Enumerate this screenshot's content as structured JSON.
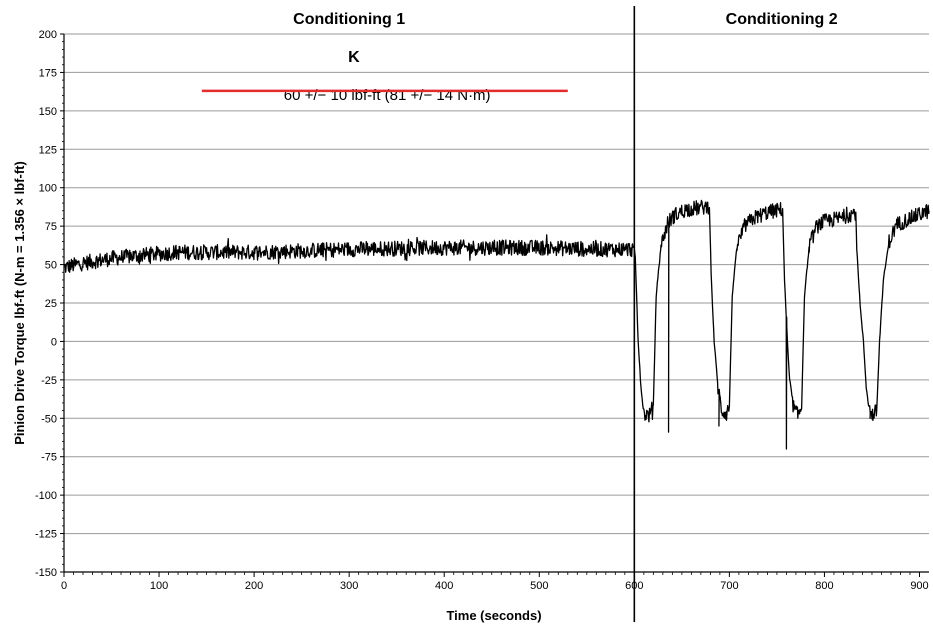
{
  "chart_data": {
    "type": "line",
    "xlabel": "Time (seconds)",
    "ylabel": "Pinion Drive Torque lbf-ft (N-m = 1.356 × lbf-ft)",
    "xlim": [
      0,
      910
    ],
    "ylim": [
      -150,
      200
    ],
    "x_ticks": [
      0,
      100,
      200,
      300,
      400,
      500,
      600,
      700,
      800,
      900
    ],
    "y_ticks": [
      200,
      175,
      150,
      125,
      100,
      75,
      50,
      25,
      0,
      -25,
      -50,
      -75,
      -100,
      -125,
      -150
    ],
    "grid": {
      "horizontal": true,
      "vertical": false
    },
    "phases": [
      {
        "label": "Conditioning 1",
        "x_start": 0,
        "x_end": 600
      },
      {
        "label": "Conditioning 2",
        "x_start": 600,
        "x_end": 910
      }
    ],
    "phase_divider_x": 600,
    "annotations": {
      "marker_label": "K",
      "spec_label": "60 +/− 10 lbf-ft (81 +/− 14 N·m)",
      "spec_line": {
        "y": 163,
        "x_start": 145,
        "x_end": 530,
        "color": "#e32d2d"
      }
    },
    "series": [
      {
        "color": "#000000",
        "noise_amplitude": 5,
        "points": [
          [
            0,
            48
          ],
          [
            20,
            51
          ],
          [
            50,
            54
          ],
          [
            80,
            56
          ],
          [
            120,
            58
          ],
          [
            200,
            58
          ],
          [
            300,
            60
          ],
          [
            400,
            61
          ],
          [
            500,
            61
          ],
          [
            560,
            60
          ],
          [
            598,
            60
          ],
          [
            601,
            55
          ],
          [
            604,
            0
          ],
          [
            607,
            -30
          ],
          [
            610,
            -47
          ],
          [
            616,
            -48
          ],
          [
            620,
            -42
          ],
          [
            623,
            30
          ],
          [
            628,
            62
          ],
          [
            635,
            77
          ],
          [
            642,
            82
          ],
          [
            655,
            86
          ],
          [
            670,
            87
          ],
          [
            679,
            88
          ],
          [
            681,
            40
          ],
          [
            684,
            0
          ],
          [
            688,
            -30
          ],
          [
            692,
            -45
          ],
          [
            697,
            -47
          ],
          [
            700,
            -42
          ],
          [
            703,
            30
          ],
          [
            708,
            62
          ],
          [
            716,
            75
          ],
          [
            725,
            80
          ],
          [
            740,
            84
          ],
          [
            756,
            86
          ],
          [
            758,
            40
          ],
          [
            761,
            0
          ],
          [
            764,
            -32
          ],
          [
            768,
            -44
          ],
          [
            772,
            -48
          ],
          [
            776,
            -43
          ],
          [
            779,
            30
          ],
          [
            784,
            62
          ],
          [
            792,
            75
          ],
          [
            800,
            78
          ],
          [
            815,
            80
          ],
          [
            833,
            84
          ],
          [
            834,
            60
          ],
          [
            838,
            20
          ],
          [
            841,
            0
          ],
          [
            844,
            -30
          ],
          [
            847,
            -44
          ],
          [
            851,
            -48
          ],
          [
            855,
            -45
          ],
          [
            858,
            0
          ],
          [
            862,
            40
          ],
          [
            868,
            65
          ],
          [
            876,
            76
          ],
          [
            890,
            80
          ],
          [
            905,
            84
          ],
          [
            910,
            85
          ]
        ],
        "spikes": [
          [
            636,
            -59
          ],
          [
            689,
            -55
          ],
          [
            760,
            -70
          ],
          [
            848,
            -50
          ]
        ]
      }
    ]
  }
}
